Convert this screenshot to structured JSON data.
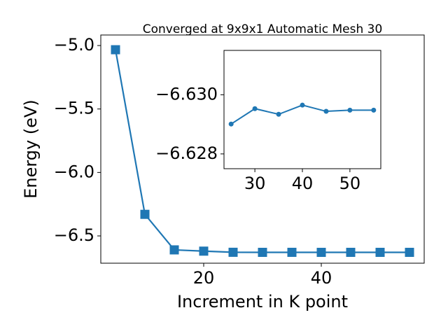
{
  "chart_data": [
    {
      "type": "line",
      "title": "Converged at 9x9x1 Automatic Mesh 30",
      "x_label": "Increment in K point",
      "y_label": "Energy (eV)",
      "marker": "square",
      "color": "#1f77b4",
      "x": [
        5,
        10,
        15,
        20,
        25,
        30,
        35,
        40,
        45,
        50,
        55
      ],
      "values": [
        -5.033,
        -6.33,
        -6.61,
        -6.62,
        -6.62901,
        -6.62953,
        -6.62934,
        -6.62965,
        -6.62944,
        -6.62948,
        -6.62948
      ],
      "xlim": [
        2.5,
        57.5
      ],
      "xticks": [
        20,
        40
      ],
      "ylim": [
        -6.715,
        -4.917
      ],
      "yticks": [
        {
          "value": -6.5,
          "label": "−6.5"
        },
        {
          "value": -6.0,
          "label": "−6.0"
        },
        {
          "value": -5.5,
          "label": "−5.5"
        },
        {
          "value": -5.0,
          "label": "−5.0"
        }
      ]
    },
    {
      "type": "line",
      "marker": "circle",
      "color": "#1f77b4",
      "x": [
        25,
        30,
        35,
        40,
        45,
        50,
        55
      ],
      "values": [
        -6.62901,
        -6.62953,
        -6.62934,
        -6.62965,
        -6.62944,
        -6.62948,
        -6.62948
      ],
      "xlim": [
        23.5,
        56.5
      ],
      "xticks": [
        30,
        40,
        50
      ],
      "ylim": [
        -6.6275,
        -6.6315
      ],
      "yticks": [
        {
          "value": -6.628,
          "label": "−6.628"
        },
        {
          "value": -6.63,
          "label": "−6.630"
        }
      ]
    }
  ]
}
